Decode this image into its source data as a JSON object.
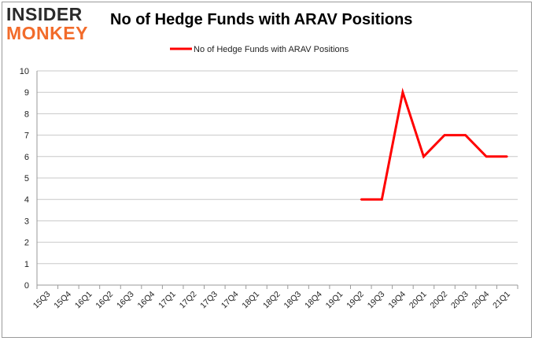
{
  "logo": {
    "line1": "INSIDER",
    "line2": "MONKEY"
  },
  "chart_data": {
    "type": "line",
    "title": "No of Hedge Funds with ARAV Positions",
    "categories": [
      "15Q3",
      "15Q4",
      "16Q1",
      "16Q2",
      "16Q3",
      "16Q4",
      "17Q1",
      "17Q2",
      "17Q3",
      "17Q4",
      "18Q1",
      "18Q2",
      "18Q3",
      "18Q4",
      "19Q1",
      "19Q2",
      "19Q3",
      "19Q4",
      "20Q1",
      "20Q2",
      "20Q3",
      "20Q4",
      "21Q1"
    ],
    "series": [
      {
        "name": "No of Hedge Funds with ARAV Positions",
        "color": "#ff0000",
        "values": [
          null,
          null,
          null,
          null,
          null,
          null,
          null,
          null,
          null,
          null,
          null,
          null,
          null,
          null,
          null,
          4,
          4,
          9,
          6,
          7,
          7,
          6,
          6
        ]
      }
    ],
    "ylim": [
      0,
      10
    ],
    "yticks": [
      0,
      1,
      2,
      3,
      4,
      5,
      6,
      7,
      8,
      9,
      10
    ],
    "grid": true,
    "legend_position": "top-center",
    "xlabel": "",
    "ylabel": ""
  }
}
